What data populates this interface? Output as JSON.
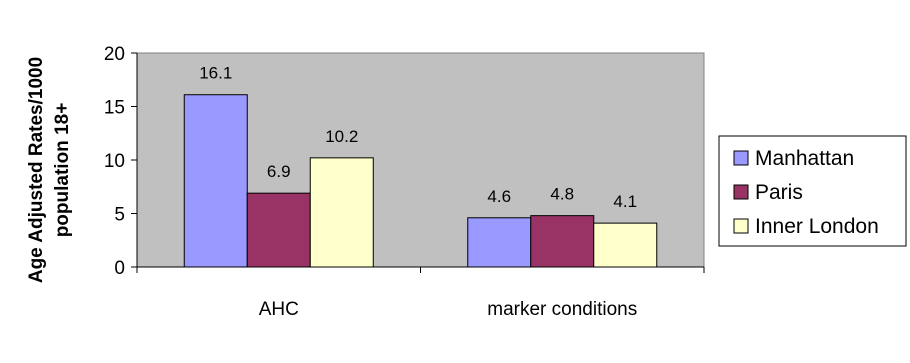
{
  "chart_data": {
    "type": "bar",
    "title": "",
    "xlabel": "",
    "ylabel_line1": "Age Adjusted Rates/1000",
    "ylabel_line2": "population 18+",
    "categories": [
      "AHC",
      "marker conditions"
    ],
    "series": [
      {
        "name": "Manhattan",
        "values": [
          16.1,
          4.6
        ],
        "color": "#9999ff"
      },
      {
        "name": "Paris",
        "values": [
          6.9,
          4.8
        ],
        "color": "#993366"
      },
      {
        "name": "Inner London",
        "values": [
          10.2,
          4.1
        ],
        "color": "#ffffcc"
      }
    ],
    "ylim": [
      0,
      20
    ],
    "yticks": [
      0,
      5,
      10,
      15,
      20
    ],
    "grid": false,
    "legend": "right",
    "plot_background": "#c0c0c0"
  }
}
